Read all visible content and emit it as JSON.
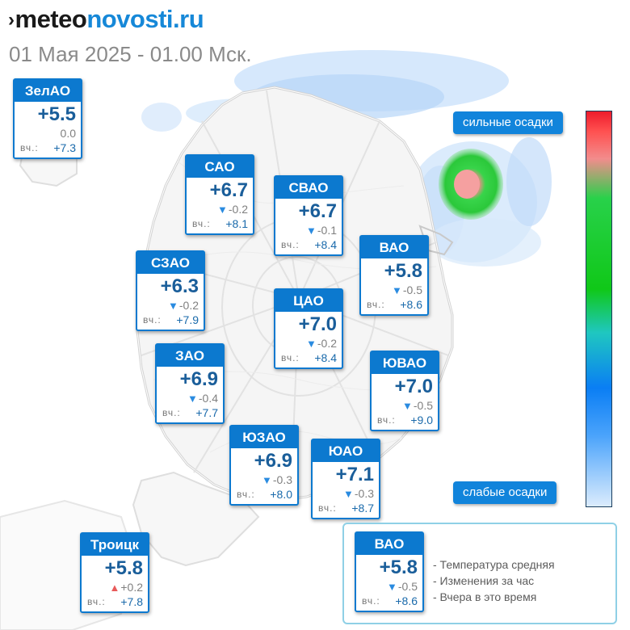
{
  "brand": {
    "prefix_glyph": "›",
    "part1": "meteo",
    "part2": "novosti.ru"
  },
  "datetime": "01 Мая 2025 - 01.00 Мск.",
  "scale": {
    "top_label": "сильные осадки",
    "bottom_label": "слабые осадки"
  },
  "districts": [
    {
      "id": "zelao",
      "name": "ЗелАО",
      "temp": "+5.5",
      "change_dir": "none",
      "change": "0.0",
      "yesterday_label": "вч.:",
      "yesterday": "+7.3"
    },
    {
      "id": "sao",
      "name": "САО",
      "temp": "+6.7",
      "change_dir": "down",
      "change": "-0.2",
      "yesterday_label": "вч.:",
      "yesterday": "+8.1"
    },
    {
      "id": "svao",
      "name": "СВАО",
      "temp": "+6.7",
      "change_dir": "down",
      "change": "-0.1",
      "yesterday_label": "вч.:",
      "yesterday": "+8.4"
    },
    {
      "id": "vao",
      "name": "ВАО",
      "temp": "+5.8",
      "change_dir": "down",
      "change": "-0.5",
      "yesterday_label": "вч.:",
      "yesterday": "+8.6"
    },
    {
      "id": "szao",
      "name": "СЗАО",
      "temp": "+6.3",
      "change_dir": "down",
      "change": "-0.2",
      "yesterday_label": "вч.:",
      "yesterday": "+7.9"
    },
    {
      "id": "cao",
      "name": "ЦАО",
      "temp": "+7.0",
      "change_dir": "down",
      "change": "-0.2",
      "yesterday_label": "вч.:",
      "yesterday": "+8.4"
    },
    {
      "id": "zao",
      "name": "ЗАО",
      "temp": "+6.9",
      "change_dir": "down",
      "change": "-0.4",
      "yesterday_label": "вч.:",
      "yesterday": "+7.7"
    },
    {
      "id": "yuvao",
      "name": "ЮВАО",
      "temp": "+7.0",
      "change_dir": "down",
      "change": "-0.5",
      "yesterday_label": "вч.:",
      "yesterday": "+9.0"
    },
    {
      "id": "yuzao",
      "name": "ЮЗАО",
      "temp": "+6.9",
      "change_dir": "down",
      "change": "-0.3",
      "yesterday_label": "вч.:",
      "yesterday": "+8.0"
    },
    {
      "id": "yuao",
      "name": "ЮАО",
      "temp": "+7.1",
      "change_dir": "down",
      "change": "-0.3",
      "yesterday_label": "вч.:",
      "yesterday": "+8.7"
    },
    {
      "id": "troitsk",
      "name": "Троицк",
      "temp": "+5.8",
      "change_dir": "up",
      "change": "+0.2",
      "yesterday_label": "вч.:",
      "yesterday": "+7.8"
    }
  ],
  "legend": {
    "sample": {
      "name": "ВАО",
      "temp": "+5.8",
      "change_dir": "down",
      "change": "-0.5",
      "yesterday_label": "вч.:",
      "yesterday": "+8.6"
    },
    "notes": [
      "- Температура средняя",
      "- Изменения за час",
      "- Вчера в это время"
    ]
  },
  "colors": {
    "card_blue": "#0c79cf",
    "temp_text": "#1a5e9a",
    "arrow_down": "#2a8be0",
    "arrow_up": "#e85a5a",
    "legend_border": "#8fd0e6"
  },
  "icons": {
    "down": "▼",
    "up": "▲"
  }
}
